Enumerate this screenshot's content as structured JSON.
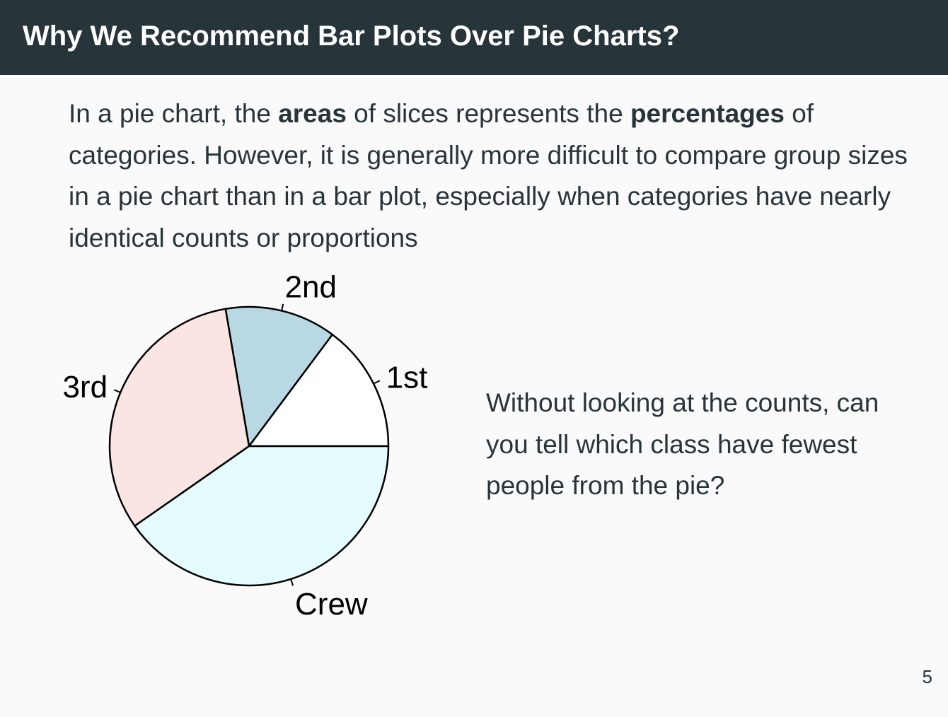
{
  "header": {
    "title": "Why We Recommend Bar Plots Over Pie Charts?"
  },
  "intro": {
    "part1": "In a pie chart, the ",
    "bold1": "areas",
    "part2": " of slices represents the ",
    "bold2": "percentages",
    "part3": " of categories. However, it is generally more difficult to compare group sizes in a pie chart than in a bar plot, especially when categories have nearly identical counts or proportions"
  },
  "question": "Without looking at the counts, can you tell which class have fewest people from the pie?",
  "page_number": "5",
  "chart_data": {
    "type": "pie",
    "title": "",
    "start_angle_deg": 0,
    "direction": "counterclockwise",
    "categories": [
      "1st",
      "2nd",
      "3rd",
      "Crew"
    ],
    "values": [
      14.8,
      12.9,
      32.0,
      40.3
    ],
    "colors": [
      "#ffffff",
      "#b8d8e3",
      "#fbe5e3",
      "#e4fcfe"
    ],
    "edge_color": "#000000",
    "label_color": "#000000"
  }
}
